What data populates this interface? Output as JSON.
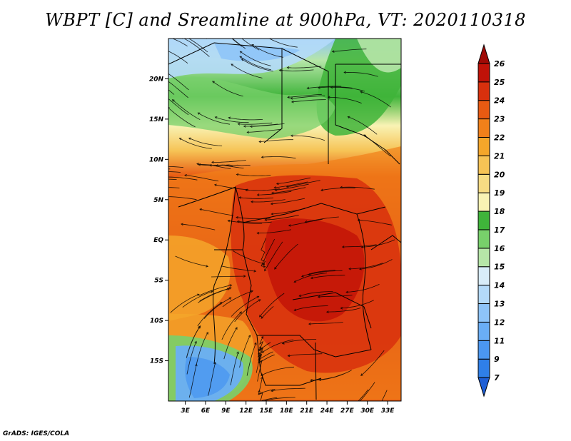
{
  "title": "WBPT [C] and Sreamline at 900hPa, VT: 2020110318",
  "credit": "GrADS: IGES/COLA",
  "map": {
    "lat_ticks": [
      {
        "value": 20,
        "label": "20N"
      },
      {
        "value": 15,
        "label": "15N"
      },
      {
        "value": 10,
        "label": "10N"
      },
      {
        "value": 5,
        "label": "5N"
      },
      {
        "value": 0,
        "label": "EQ"
      },
      {
        "value": -5,
        "label": "5S"
      },
      {
        "value": -10,
        "label": "10S"
      },
      {
        "value": -15,
        "label": "15S"
      }
    ],
    "lon_ticks": [
      {
        "value": 3,
        "label": "3E"
      },
      {
        "value": 6,
        "label": "6E"
      },
      {
        "value": 9,
        "label": "9E"
      },
      {
        "value": 12,
        "label": "12E"
      },
      {
        "value": 15,
        "label": "15E"
      },
      {
        "value": 18,
        "label": "18E"
      },
      {
        "value": 21,
        "label": "21E"
      },
      {
        "value": 24,
        "label": "24E"
      },
      {
        "value": 27,
        "label": "27E"
      },
      {
        "value": 30,
        "label": "30E"
      },
      {
        "value": 33,
        "label": "33E"
      }
    ],
    "lon_range": [
      0.5,
      35
    ],
    "lat_range": [
      -20,
      25
    ]
  },
  "colorbar": {
    "levels": [
      "7",
      "9",
      "11",
      "12",
      "13",
      "14",
      "15",
      "16",
      "17",
      "18",
      "19",
      "20",
      "21",
      "22",
      "23",
      "24",
      "25",
      "26"
    ],
    "colors": [
      "#1e5fd6",
      "#2f7fe8",
      "#4b97f0",
      "#6aaef5",
      "#8ec4f8",
      "#b4daf9",
      "#d8ecf8",
      "#b6e6a8",
      "#78d06b",
      "#3fb43a",
      "#f9f3b4",
      "#f7dc83",
      "#f6c355",
      "#f4a62a",
      "#f1801a",
      "#e85a12",
      "#d8300d",
      "#c01208",
      "#a00a06"
    ]
  }
}
